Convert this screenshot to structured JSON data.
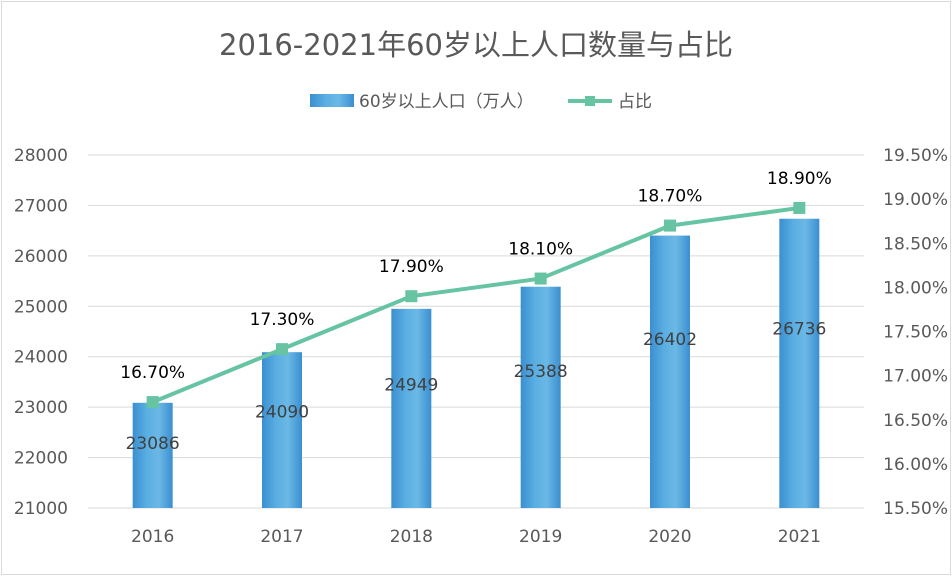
{
  "chart_data": {
    "type": "bar",
    "title": "2016-2021年60岁以上人口数量与占比",
    "categories": [
      "2016",
      "2017",
      "2018",
      "2019",
      "2020",
      "2021"
    ],
    "series": [
      {
        "name": "60岁以上人口（万人）",
        "type": "bar",
        "axis": "left",
        "values": [
          23086,
          24090,
          24949,
          25388,
          26402,
          26736
        ],
        "labels": [
          "23086",
          "24090",
          "24949",
          "25388",
          "26402",
          "26736"
        ],
        "color": "#4a9fd8"
      },
      {
        "name": "占比",
        "type": "line",
        "axis": "right",
        "values": [
          16.7,
          17.3,
          17.9,
          18.1,
          18.7,
          18.9
        ],
        "labels": [
          "16.70%",
          "17.30%",
          "17.90%",
          "18.10%",
          "18.70%",
          "18.90%"
        ],
        "color": "#66c4a3"
      }
    ],
    "y_left": {
      "range": [
        21000,
        28000
      ],
      "ticks": [
        "21000",
        "22000",
        "23000",
        "24000",
        "25000",
        "26000",
        "27000",
        "28000"
      ]
    },
    "y_right": {
      "range": [
        15.5,
        19.5
      ],
      "ticks": [
        "15.50%",
        "16.00%",
        "16.50%",
        "17.00%",
        "17.50%",
        "18.00%",
        "18.50%",
        "19.00%",
        "19.50%"
      ]
    },
    "grid": true,
    "legend_position": "top"
  }
}
